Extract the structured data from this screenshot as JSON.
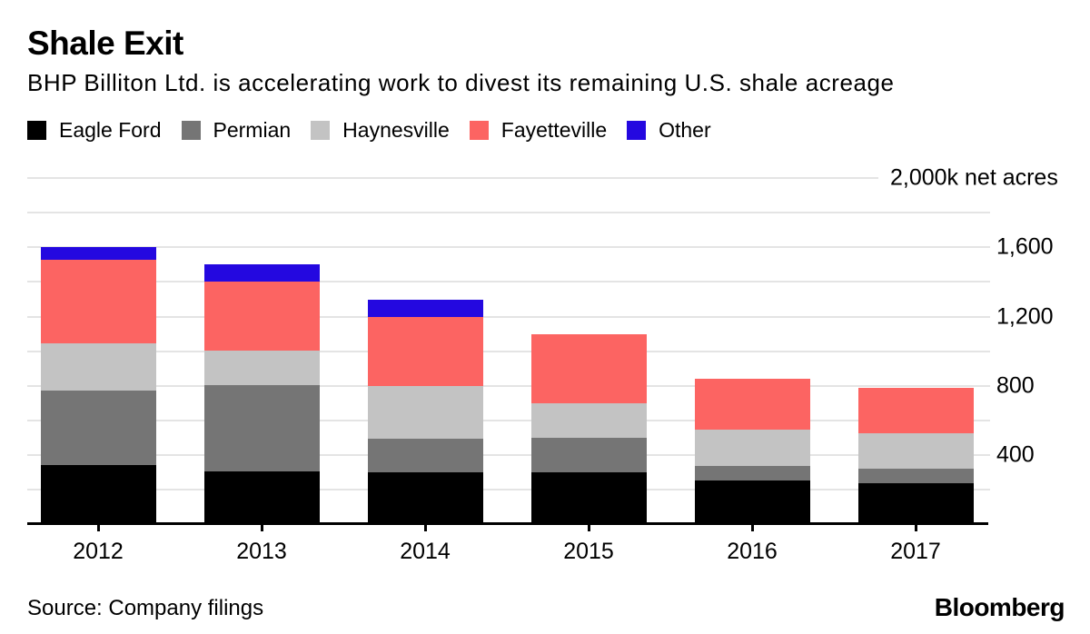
{
  "title": "Shale Exit",
  "subtitle": "BHP Billiton Ltd. is accelerating work to divest its remaining U.S. shale acreage",
  "source": "Source: Company filings",
  "brand": "Bloomberg",
  "colors": {
    "eagle_ford": "#000000",
    "permian": "#757575",
    "haynesville": "#c3c3c3",
    "fayetteville": "#fc6462",
    "other": "#2408e0",
    "gridline": "#e4e4e4",
    "axis": "#000000"
  },
  "chart_data": {
    "type": "bar",
    "stacked": true,
    "title": "Shale Exit",
    "subtitle": "BHP Billiton Ltd. is accelerating work to divest its remaining U.S. shale acreage",
    "categories": [
      "2012",
      "2013",
      "2014",
      "2015",
      "2016",
      "2017"
    ],
    "series": [
      {
        "name": "Eagle Ford",
        "color": "#000000",
        "values": [
          345,
          305,
          300,
          300,
          255,
          240
        ]
      },
      {
        "name": "Permian",
        "color": "#757575",
        "values": [
          430,
          500,
          195,
          200,
          85,
          85
        ]
      },
      {
        "name": "Haynesville",
        "color": "#c3c3c3",
        "values": [
          270,
          200,
          305,
          200,
          210,
          200
        ]
      },
      {
        "name": "Fayetteville",
        "color": "#fc6462",
        "values": [
          485,
          400,
          400,
          400,
          290,
          265
        ]
      },
      {
        "name": "Other",
        "color": "#2408e0",
        "values": [
          70,
          95,
          100,
          0,
          0,
          0
        ]
      }
    ],
    "ylabel": "net acres (thousands)",
    "ylim": [
      0,
      2000
    ],
    "gridline_step": 200,
    "yticks": [
      400,
      800,
      1200,
      1600,
      2000
    ],
    "ytick_labels": [
      "400",
      "800",
      "1,200",
      "1,600",
      "2,000k net acres"
    ],
    "grid": true,
    "legend_position": "top"
  }
}
